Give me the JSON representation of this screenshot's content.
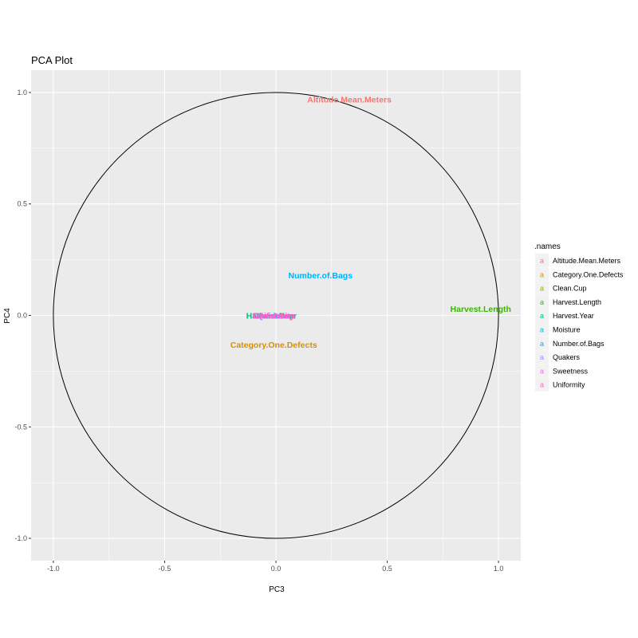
{
  "chart_data": {
    "type": "scatter",
    "title": "PCA Plot",
    "xlabel": "PC3",
    "ylabel": "PC4",
    "xlim": [
      -1.1,
      1.1
    ],
    "ylim": [
      -1.1,
      1.1
    ],
    "x_ticks": [
      -1.0,
      -0.5,
      0.0,
      0.5,
      1.0
    ],
    "y_ticks": [
      -1.0,
      -0.5,
      0.0,
      0.5,
      1.0
    ],
    "x_tick_labels": [
      "-1.0",
      "-0.5",
      "0.0",
      "0.5",
      "1.0"
    ],
    "y_tick_labels": [
      "-1.0",
      "-0.5",
      "0.0",
      "0.5",
      "1.0"
    ],
    "grid": true,
    "unit_circle": true,
    "legend": {
      "title": ".names",
      "position": "right",
      "glyph": "a"
    },
    "points": [
      {
        "name": "Altitude.Mean.Meters",
        "x": 0.33,
        "y": 0.97,
        "color": "#F8766D"
      },
      {
        "name": "Category.One.Defects",
        "x": -0.01,
        "y": -0.13,
        "color": "#D89000"
      },
      {
        "name": "Clean.Cup",
        "x": -0.01,
        "y": 0.0,
        "color": "#A3A500"
      },
      {
        "name": "Harvest.Length",
        "x": 0.92,
        "y": 0.03,
        "color": "#39B600"
      },
      {
        "name": "Harvest.Year",
        "x": -0.02,
        "y": 0.0,
        "color": "#00BF7D"
      },
      {
        "name": "Moisture",
        "x": -0.01,
        "y": 0.0,
        "color": "#00BFC4"
      },
      {
        "name": "Number.of.Bags",
        "x": 0.2,
        "y": 0.18,
        "color": "#00B0F6"
      },
      {
        "name": "Quakers",
        "x": -0.01,
        "y": 0.0,
        "color": "#9590FF"
      },
      {
        "name": "Sweetness",
        "x": -0.01,
        "y": 0.0,
        "color": "#E76BF3"
      },
      {
        "name": "Uniformity",
        "x": -0.01,
        "y": 0.0,
        "color": "#FF62BC"
      }
    ]
  }
}
